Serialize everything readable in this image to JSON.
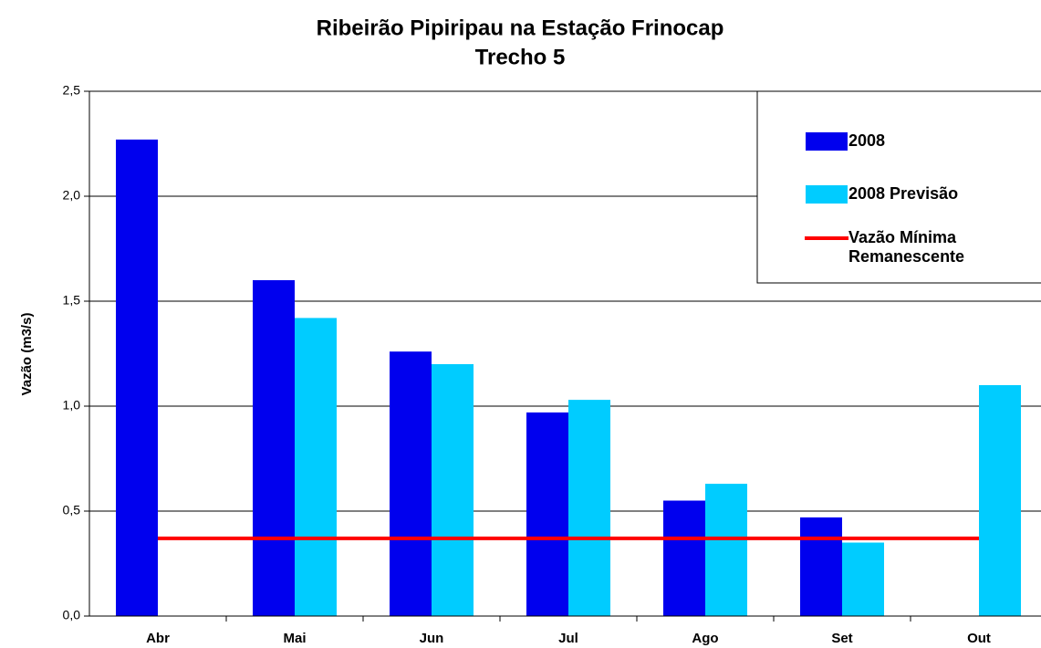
{
  "chart_data": {
    "type": "bar",
    "title": "Ribeirão Pipiripau na Estação Frinocap",
    "subtitle": "Trecho 5",
    "y_label": "Vazão (m3/s)",
    "categories": [
      "Abr",
      "Mai",
      "Jun",
      "Jul",
      "Ago",
      "Set",
      "Out"
    ],
    "series": [
      {
        "name": "2008",
        "type": "bar",
        "color": "#0000EE",
        "values": [
          2.27,
          1.6,
          1.26,
          0.97,
          0.55,
          0.47,
          null
        ]
      },
      {
        "name": "2008 Previsão",
        "type": "bar",
        "color": "#00CCFF",
        "values": [
          null,
          1.42,
          1.2,
          1.03,
          0.63,
          0.35,
          1.1
        ]
      },
      {
        "name": "Vazão Mínima Remanescente",
        "type": "line",
        "color": "#FF0000",
        "values": [
          0.37,
          0.37,
          0.37,
          0.37,
          0.37,
          0.37,
          0.37
        ]
      }
    ],
    "ylim": [
      0,
      2.5
    ],
    "yticks": [
      {
        "value": 0,
        "label": "0,0"
      },
      {
        "value": 0.5,
        "label": "0,5"
      },
      {
        "value": 1,
        "label": "1,0"
      },
      {
        "value": 1.5,
        "label": "1,5"
      },
      {
        "value": 2,
        "label": "2,0"
      },
      {
        "value": 2.5,
        "label": "2,5"
      }
    ],
    "grid": true,
    "legend": "top-right"
  }
}
